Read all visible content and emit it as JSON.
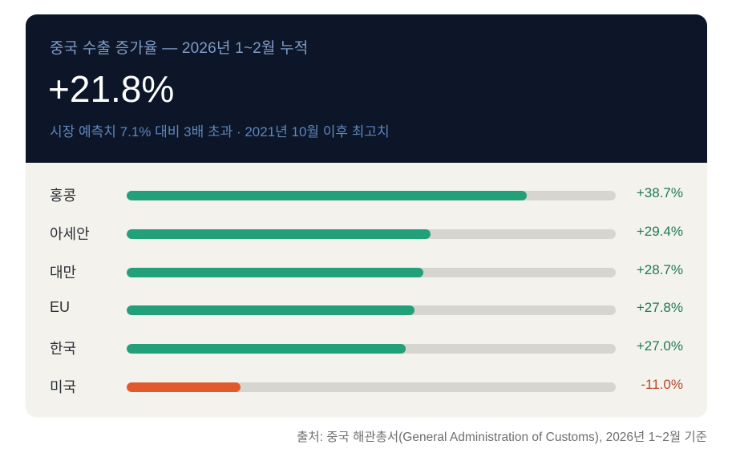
{
  "header": {
    "eyebrow": "중국 수출 증가율 — 2026년 1~2월 누적",
    "headline": "+21.8%",
    "subline": "시장 예측치 7.1% 대비 3배 초과 · 2021년 10월 이후 최고치"
  },
  "colors": {
    "header_bg": "#0c1628",
    "positive_bar": "#22a07a",
    "negative_bar": "#e05a2e",
    "positive_text": "#1e7a56",
    "negative_text": "#b5482a",
    "track": "#d7d5cf"
  },
  "chart_data": {
    "type": "bar",
    "orientation": "horizontal",
    "categories": [
      "홍콩",
      "아세안",
      "대만",
      "EU",
      "한국",
      "미국"
    ],
    "values": [
      38.7,
      29.4,
      28.7,
      27.8,
      27.0,
      -11.0
    ],
    "value_labels": [
      "+38.7%",
      "+29.4%",
      "+28.7%",
      "+27.8%",
      "+27.0%",
      "-11.0%"
    ],
    "unit": "%",
    "scale_max_abs": 47.3
  },
  "source": "출처: 중국 해관총서(General Administration of Customs), 2026년 1~2월 기준"
}
